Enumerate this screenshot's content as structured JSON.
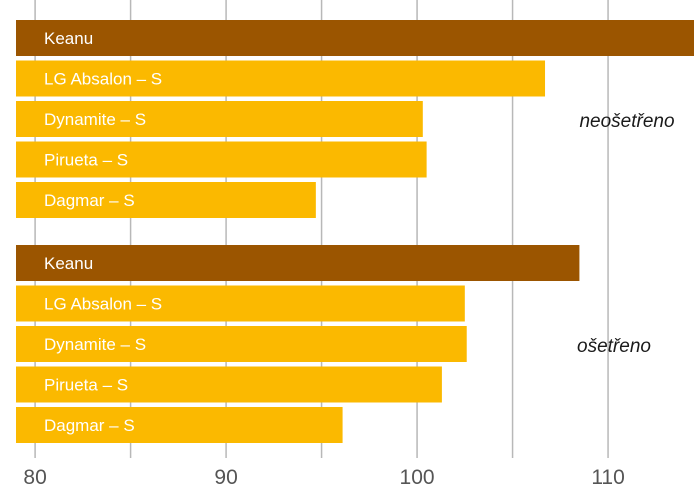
{
  "chart_data": {
    "type": "bar",
    "orientation": "horizontal",
    "xlim": [
      79,
      114.5
    ],
    "ticks": [
      80,
      85,
      90,
      95,
      100,
      105,
      110
    ],
    "tick_labels": [
      "80",
      "90",
      "100",
      "110"
    ],
    "labeled_ticks": [
      80,
      90,
      100,
      110
    ],
    "grid": true,
    "colors": {
      "highlight": "#9b5500",
      "normal": "#fbb900",
      "grid": "#b8b8b8"
    },
    "groups": [
      {
        "label": "neošetřeno",
        "bars": [
          {
            "name": "Keanu",
            "value": 114.5,
            "highlight": true
          },
          {
            "name": "LG Absalon – S",
            "value": 106.7,
            "highlight": false
          },
          {
            "name": "Dynamite – S",
            "value": 100.3,
            "highlight": false
          },
          {
            "name": "Pirueta – S",
            "value": 100.5,
            "highlight": false
          },
          {
            "name": "Dagmar – S",
            "value": 94.7,
            "highlight": false
          }
        ]
      },
      {
        "label": "ošetřeno",
        "bars": [
          {
            "name": "Keanu",
            "value": 108.5,
            "highlight": true
          },
          {
            "name": "LG Absalon – S",
            "value": 102.5,
            "highlight": false
          },
          {
            "name": "Dynamite – S",
            "value": 102.6,
            "highlight": false
          },
          {
            "name": "Pirueta – S",
            "value": 101.3,
            "highlight": false
          },
          {
            "name": "Dagmar – S",
            "value": 96.1,
            "highlight": false
          }
        ]
      }
    ]
  }
}
